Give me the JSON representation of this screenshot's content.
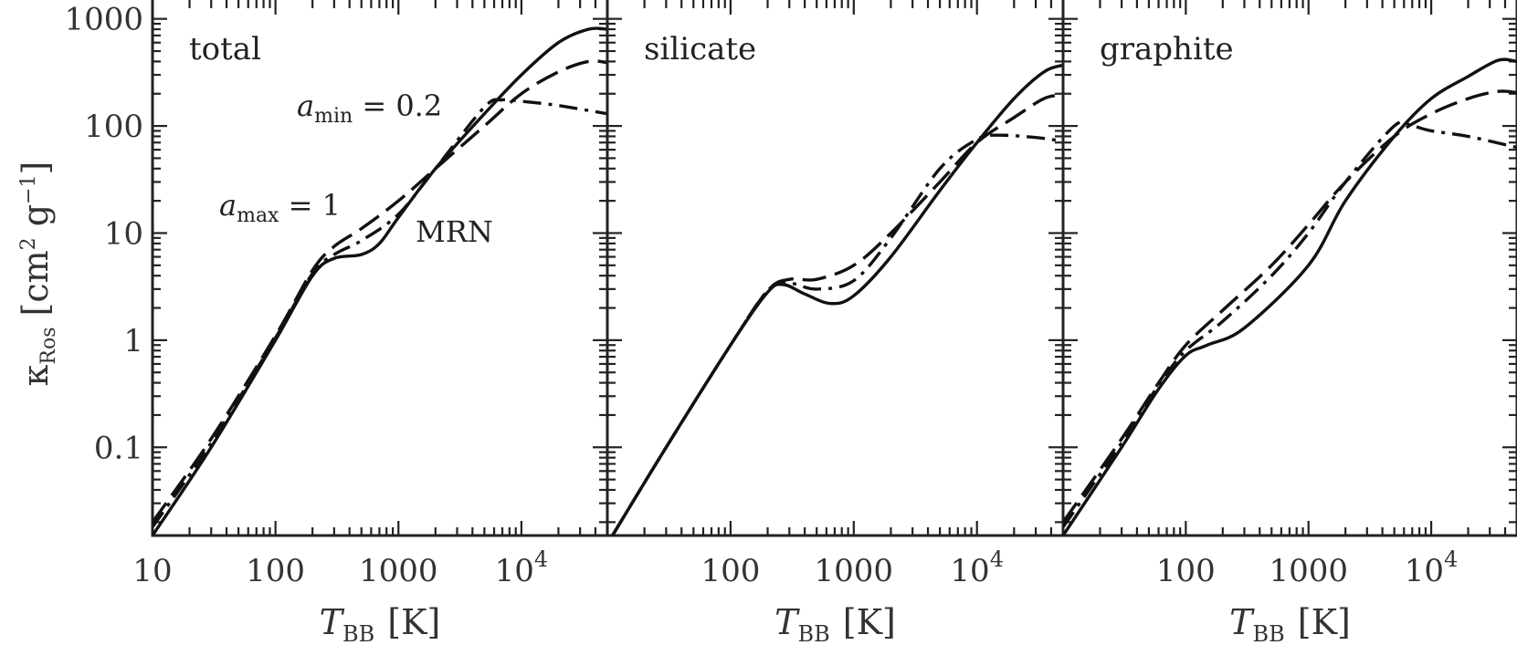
{
  "chart_data": {
    "type": "line",
    "xscale": "log",
    "yscale": "log",
    "xlim": [
      10,
      50000
    ],
    "ylim": [
      0.015,
      1500
    ],
    "ylabel": "κ_Ros [cm² g⁻¹]",
    "ylabel_parts": {
      "symbol": "κ",
      "sub": "Ros",
      "unit_open": "[cm",
      "unit_sup1": "2",
      "unit_mid": " g",
      "unit_sup2": "−1",
      "unit_close": "]"
    },
    "xlabel_parts": {
      "symbol": "T",
      "sub": "BB",
      "unit": "[K]"
    },
    "yticks": [
      {
        "value": 1000,
        "label": "1000"
      },
      {
        "value": 100,
        "label": "100"
      },
      {
        "value": 10,
        "label": "10"
      },
      {
        "value": 1,
        "label": "1"
      },
      {
        "value": 0.1,
        "label": "0.1"
      }
    ],
    "xticks": [
      {
        "value": 10,
        "label": "10",
        "exp": ""
      },
      {
        "value": 100,
        "label": "100",
        "exp": ""
      },
      {
        "value": 1000,
        "label": "1000",
        "exp": ""
      },
      {
        "value": 10000,
        "label": "10",
        "exp": "4"
      }
    ],
    "annotations": {
      "amin": {
        "symbol": "a",
        "sub": "min",
        "rest": " = 0.2"
      },
      "amax": {
        "symbol": "a",
        "sub": "max",
        "rest": " = 1"
      },
      "mrn": "MRN"
    },
    "panels": [
      {
        "title": "total",
        "series": [
          {
            "name": "MRN",
            "style": "solid",
            "points": [
              [
                10,
                0.015
              ],
              [
                30,
                0.1
              ],
              [
                100,
                1.0
              ],
              [
                200,
                4.0
              ],
              [
                300,
                5.8
              ],
              [
                500,
                6.3
              ],
              [
                700,
                8
              ],
              [
                1000,
                14
              ],
              [
                2000,
                40
              ],
              [
                5000,
                130
              ],
              [
                10000,
                300
              ],
              [
                20000,
                600
              ],
              [
                35000,
                800
              ],
              [
                50000,
                800
              ]
            ]
          },
          {
            "name": "amax = 1",
            "style": "dashed",
            "points": [
              [
                10,
                0.02
              ],
              [
                30,
                0.12
              ],
              [
                100,
                1.1
              ],
              [
                200,
                4.5
              ],
              [
                300,
                7.5
              ],
              [
                500,
                11
              ],
              [
                1000,
                20
              ],
              [
                2000,
                40
              ],
              [
                5000,
                100
              ],
              [
                10000,
                200
              ],
              [
                20000,
                320
              ],
              [
                35000,
                400
              ],
              [
                50000,
                390
              ]
            ]
          },
          {
            "name": "amin = 0.2",
            "style": "dashdot",
            "points": [
              [
                10,
                0.018
              ],
              [
                30,
                0.11
              ],
              [
                100,
                1.05
              ],
              [
                200,
                4.2
              ],
              [
                300,
                6.3
              ],
              [
                500,
                8.5
              ],
              [
                1000,
                15
              ],
              [
                2000,
                40
              ],
              [
                5000,
                150
              ],
              [
                7000,
                175
              ],
              [
                10000,
                170
              ],
              [
                20000,
                155
              ],
              [
                50000,
                130
              ]
            ]
          }
        ]
      },
      {
        "title": "silicate",
        "series": [
          {
            "name": "MRN",
            "style": "solid",
            "points": [
              [
                11,
                0.015
              ],
              [
                30,
                0.1
              ],
              [
                100,
                0.9
              ],
              [
                200,
                2.8
              ],
              [
                270,
                3.3
              ],
              [
                400,
                2.7
              ],
              [
                650,
                2.2
              ],
              [
                1000,
                2.6
              ],
              [
                2000,
                6
              ],
              [
                5000,
                25
              ],
              [
                10000,
                70
              ],
              [
                20000,
                180
              ],
              [
                35000,
                320
              ],
              [
                50000,
                370
              ]
            ]
          },
          {
            "name": "amax = 1",
            "style": "dashed",
            "points": [
              [
                11,
                0.015
              ],
              [
                30,
                0.1
              ],
              [
                100,
                0.9
              ],
              [
                200,
                2.9
              ],
              [
                300,
                3.7
              ],
              [
                500,
                3.7
              ],
              [
                1000,
                5
              ],
              [
                2000,
                10
              ],
              [
                5000,
                30
              ],
              [
                10000,
                70
              ],
              [
                20000,
                120
              ],
              [
                35000,
                180
              ],
              [
                50000,
                195
              ]
            ]
          },
          {
            "name": "amin = 0.2",
            "style": "dashdot",
            "points": [
              [
                11,
                0.015
              ],
              [
                30,
                0.1
              ],
              [
                100,
                0.9
              ],
              [
                200,
                2.9
              ],
              [
                300,
                3.4
              ],
              [
                500,
                3.0
              ],
              [
                1000,
                3.6
              ],
              [
                2000,
                9
              ],
              [
                5000,
                40
              ],
              [
                10000,
                75
              ],
              [
                15000,
                82
              ],
              [
                30000,
                78
              ],
              [
                50000,
                72
              ]
            ]
          }
        ]
      },
      {
        "title": "graphite",
        "series": [
          {
            "name": "MRN",
            "style": "solid",
            "points": [
              [
                10,
                0.015
              ],
              [
                30,
                0.1
              ],
              [
                60,
                0.35
              ],
              [
                100,
                0.72
              ],
              [
                150,
                0.9
              ],
              [
                300,
                1.3
              ],
              [
                1000,
                5
              ],
              [
                2000,
                20
              ],
              [
                5000,
                80
              ],
              [
                10000,
                180
              ],
              [
                20000,
                290
              ],
              [
                35000,
                410
              ],
              [
                50000,
                400
              ]
            ]
          },
          {
            "name": "amax = 1",
            "style": "dashed",
            "points": [
              [
                10,
                0.02
              ],
              [
                30,
                0.12
              ],
              [
                60,
                0.4
              ],
              [
                100,
                0.9
              ],
              [
                200,
                1.9
              ],
              [
                500,
                5
              ],
              [
                1000,
                12
              ],
              [
                2000,
                30
              ],
              [
                5000,
                80
              ],
              [
                10000,
                130
              ],
              [
                20000,
                180
              ],
              [
                35000,
                210
              ],
              [
                50000,
                205
              ]
            ]
          },
          {
            "name": "amin = 0.2",
            "style": "dashdot",
            "points": [
              [
                10,
                0.018
              ],
              [
                30,
                0.11
              ],
              [
                60,
                0.38
              ],
              [
                100,
                0.8
              ],
              [
                200,
                1.5
              ],
              [
                500,
                4
              ],
              [
                1000,
                10
              ],
              [
                2000,
                30
              ],
              [
                5000,
                100
              ],
              [
                7000,
                100
              ],
              [
                10000,
                90
              ],
              [
                20000,
                80
              ],
              [
                50000,
                63
              ]
            ]
          }
        ]
      }
    ]
  }
}
